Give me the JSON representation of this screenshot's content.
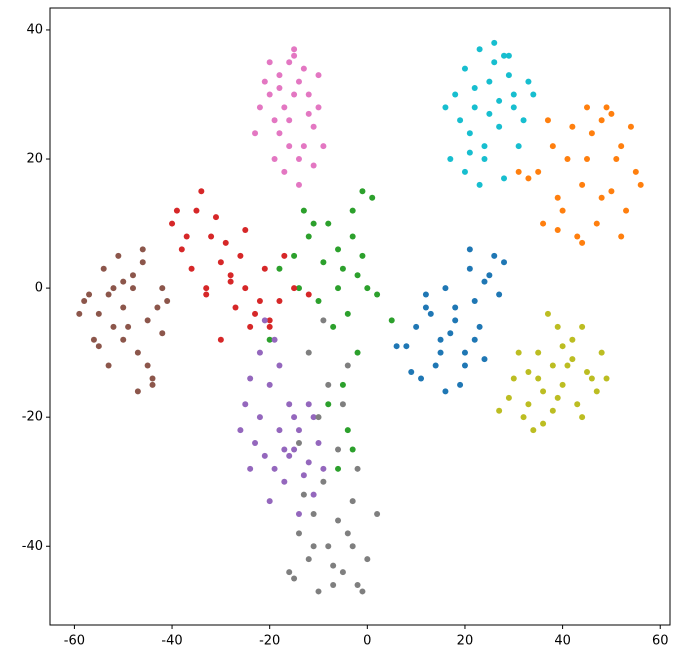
{
  "chart_data": {
    "type": "scatter",
    "xlim": [
      -65,
      62
    ],
    "ylim": [
      -52.2,
      43.4
    ],
    "xticks": [
      -60,
      -40,
      -20,
      0,
      20,
      40,
      60
    ],
    "yticks": [
      -40,
      -20,
      0,
      20,
      40
    ],
    "grid": false,
    "series": [
      {
        "color": "#1f77b4",
        "x": [
          10,
          12,
          15,
          18,
          20,
          22,
          14,
          16,
          19,
          21,
          24,
          26,
          8,
          11,
          13,
          17,
          23,
          25,
          27,
          20,
          15,
          12,
          18,
          22,
          9,
          16,
          28,
          24,
          21,
          6
        ],
        "values": [
          -6,
          -3,
          -8,
          -5,
          -10,
          -2,
          -12,
          0,
          -15,
          3,
          1,
          5,
          -9,
          -14,
          -4,
          -7,
          -6,
          2,
          -1,
          -12,
          -10,
          -1,
          -3,
          -8,
          -13,
          -16,
          4,
          -11,
          6,
          -9
        ]
      },
      {
        "color": "#ff7f0e",
        "x": [
          35,
          38,
          42,
          45,
          48,
          50,
          52,
          55,
          40,
          44,
          47,
          53,
          36,
          39,
          43,
          46,
          49,
          51,
          54,
          56,
          33,
          41,
          45,
          50,
          37,
          48,
          44,
          52,
          31,
          39
        ],
        "values": [
          18,
          22,
          25,
          20,
          26,
          15,
          22,
          18,
          12,
          16,
          10,
          12,
          10,
          14,
          8,
          24,
          28,
          20,
          25,
          16,
          17,
          20,
          28,
          27,
          26,
          14,
          7,
          8,
          18,
          9
        ]
      },
      {
        "color": "#2ca02c",
        "x": [
          -15,
          -12,
          -8,
          -5,
          -3,
          0,
          -10,
          -6,
          -2,
          1,
          -14,
          -9,
          -4,
          -1,
          -7,
          -11,
          -3,
          -18,
          2,
          -6,
          -5,
          -4,
          -8,
          -2,
          -13,
          -3,
          5,
          -20,
          -6,
          -1
        ],
        "values": [
          5,
          8,
          10,
          3,
          12,
          0,
          -2,
          6,
          2,
          14,
          0,
          4,
          -4,
          15,
          -6,
          10,
          8,
          3,
          -1,
          0,
          -15,
          -22,
          -18,
          -10,
          12,
          -25,
          -5,
          -8,
          -28,
          5
        ]
      },
      {
        "color": "#d62728",
        "x": [
          -40,
          -38,
          -35,
          -32,
          -30,
          -28,
          -25,
          -22,
          -20,
          -36,
          -33,
          -29,
          -26,
          -23,
          -18,
          -15,
          -34,
          -31,
          -27,
          -24,
          -21,
          -37,
          -39,
          -30,
          -25,
          -17,
          -12,
          -28,
          -33,
          -20
        ],
        "values": [
          10,
          6,
          12,
          8,
          4,
          2,
          0,
          -2,
          -5,
          3,
          -1,
          7,
          5,
          -4,
          -2,
          0,
          15,
          11,
          -3,
          -6,
          3,
          8,
          12,
          -8,
          9,
          5,
          -1,
          1,
          0,
          -6
        ]
      },
      {
        "color": "#9467bd",
        "x": [
          -25,
          -22,
          -20,
          -18,
          -15,
          -12,
          -10,
          -24,
          -21,
          -17,
          -14,
          -11,
          -19,
          -16,
          -13,
          -23,
          -20,
          -18,
          -15,
          -26,
          -22,
          -12,
          -9,
          -17,
          -21,
          -14,
          -24,
          -19,
          -11,
          -16
        ],
        "values": [
          -18,
          -20,
          -15,
          -22,
          -25,
          -27,
          -24,
          -28,
          -26,
          -30,
          -22,
          -32,
          -8,
          -18,
          -29,
          -24,
          -33,
          -12,
          -20,
          -22,
          -10,
          -18,
          -28,
          -25,
          -5,
          -35,
          -14,
          -28,
          -20,
          -26
        ]
      },
      {
        "color": "#8c564b",
        "x": [
          -58,
          -55,
          -52,
          -50,
          -48,
          -45,
          -42,
          -56,
          -53,
          -49,
          -46,
          -43,
          -51,
          -47,
          -44,
          -57,
          -54,
          -50,
          -45,
          -41,
          -59,
          -52,
          -48,
          -46,
          -44,
          -55,
          -50,
          -42,
          -53,
          -47
        ],
        "values": [
          -2,
          -4,
          0,
          -3,
          2,
          -5,
          0,
          -8,
          -1,
          -6,
          4,
          -3,
          5,
          -10,
          -15,
          -1,
          3,
          -8,
          -12,
          -2,
          -4,
          -6,
          0,
          6,
          -14,
          -9,
          1,
          -7,
          -12,
          -16
        ]
      },
      {
        "color": "#e377c2",
        "x": [
          -20,
          -18,
          -16,
          -14,
          -12,
          -10,
          -19,
          -17,
          -15,
          -13,
          -11,
          -21,
          -16,
          -14,
          -18,
          -12,
          -15,
          -17,
          -13,
          -22,
          -20,
          -16,
          -14,
          -10,
          -19,
          -11,
          -15,
          -18,
          -23,
          -9
        ],
        "values": [
          30,
          33,
          35,
          32,
          30,
          28,
          26,
          28,
          36,
          34,
          25,
          32,
          22,
          20,
          24,
          27,
          30,
          18,
          22,
          28,
          35,
          26,
          16,
          33,
          20,
          19,
          37,
          31,
          24,
          22
        ]
      },
      {
        "color": "#7f7f7f",
        "x": [
          -15,
          -12,
          -10,
          -8,
          -5,
          -2,
          0,
          -14,
          -11,
          -7,
          -4,
          -1,
          -13,
          -9,
          -6,
          -3,
          -16,
          -12,
          -8,
          -4,
          -10,
          -6,
          -2,
          -11,
          -7,
          -3,
          2,
          -14,
          -9,
          -5
        ],
        "values": [
          -45,
          -42,
          -47,
          -40,
          -44,
          -46,
          -42,
          -38,
          -35,
          -43,
          -38,
          -47,
          -32,
          -30,
          -36,
          -33,
          -44,
          -10,
          -15,
          -12,
          -20,
          -25,
          -28,
          -40,
          -46,
          -40,
          -35,
          -24,
          -5,
          -18
        ]
      },
      {
        "color": "#bcbd22",
        "x": [
          30,
          33,
          35,
          38,
          40,
          42,
          45,
          48,
          32,
          36,
          39,
          43,
          46,
          29,
          34,
          37,
          41,
          44,
          47,
          31,
          35,
          38,
          42,
          36,
          40,
          33,
          44,
          27,
          39,
          49
        ],
        "values": [
          -14,
          -18,
          -10,
          -12,
          -15,
          -8,
          -13,
          -10,
          -20,
          -16,
          -6,
          -18,
          -14,
          -17,
          -22,
          -4,
          -12,
          -20,
          -16,
          -10,
          -14,
          -19,
          -11,
          -21,
          -9,
          -13,
          -6,
          -19,
          -17,
          -14
        ]
      },
      {
        "color": "#17becf",
        "x": [
          18,
          20,
          22,
          25,
          28,
          30,
          32,
          21,
          24,
          27,
          29,
          19,
          23,
          26,
          31,
          17,
          25,
          28,
          22,
          30,
          26,
          20,
          33,
          24,
          27,
          16,
          29,
          23,
          21,
          34
        ],
        "values": [
          30,
          34,
          28,
          32,
          36,
          30,
          26,
          24,
          22,
          29,
          33,
          26,
          37,
          38,
          22,
          20,
          27,
          17,
          31,
          28,
          35,
          18,
          32,
          20,
          25,
          28,
          36,
          16,
          21,
          30
        ]
      }
    ]
  }
}
